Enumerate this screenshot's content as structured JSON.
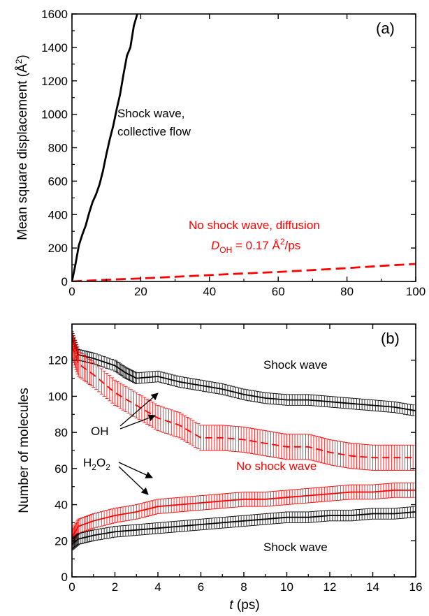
{
  "chart_data": [
    {
      "panel": "a",
      "type": "line",
      "panel_label": "(a)",
      "xlabel": "",
      "ylabel_main": "Mean square displacement (",
      "ylabel_unit": "Å",
      "ylabel_sup": "2",
      "ylabel_close": ")",
      "xlim": [
        0,
        100
      ],
      "ylim": [
        0,
        1600
      ],
      "xticks": [
        "0",
        "20",
        "40",
        "60",
        "80",
        "100"
      ],
      "yticks": [
        "0",
        "200",
        "400",
        "600",
        "800",
        "1000",
        "1200",
        "1400",
        "1600"
      ],
      "series": [
        {
          "name": "Shock wave, collective flow",
          "color": "#000000",
          "style": "solid",
          "points": [
            [
              0,
              0
            ],
            [
              1,
              100
            ],
            [
              2,
              215
            ],
            [
              3,
              280
            ],
            [
              4,
              335
            ],
            [
              5,
              410
            ],
            [
              6,
              475
            ],
            [
              7,
              520
            ],
            [
              8,
              580
            ],
            [
              9,
              660
            ],
            [
              10,
              760
            ],
            [
              11,
              850
            ],
            [
              12,
              930
            ],
            [
              13,
              1030
            ],
            [
              14,
              1120
            ],
            [
              15,
              1240
            ],
            [
              16,
              1350
            ],
            [
              17,
              1400
            ],
            [
              18,
              1530
            ],
            [
              19,
              1600
            ]
          ]
        },
        {
          "name": "No shock wave, diffusion",
          "color": "#ff0000",
          "style": "dashed",
          "points": [
            [
              0,
              0
            ],
            [
              10,
              10
            ],
            [
              20,
              18
            ],
            [
              30,
              28
            ],
            [
              40,
              38
            ],
            [
              50,
              48
            ],
            [
              60,
              57
            ],
            [
              70,
              68
            ],
            [
              80,
              80
            ],
            [
              90,
              93
            ],
            [
              100,
              105
            ]
          ]
        }
      ],
      "annotations": {
        "shock_line1": "Shock wave,",
        "shock_line2": "collective flow",
        "noshock_line1": "No shock wave, diffusion",
        "d_symbol": "D",
        "d_sub": "OH",
        "d_value": " = 0.17 ",
        "d_unit": "Å",
        "d_sup": "2",
        "d_rest": "/ps"
      }
    },
    {
      "panel": "b",
      "type": "line",
      "panel_label": "(b)",
      "xlabel_var": "t",
      "xlabel_unit": " (ps)",
      "ylabel": "Number of molecules",
      "xlim": [
        0,
        16
      ],
      "ylim": [
        0,
        140
      ],
      "xticks": [
        "0",
        "2",
        "4",
        "6",
        "8",
        "10",
        "12",
        "14",
        "16"
      ],
      "yticks": [
        "0",
        "20",
        "40",
        "60",
        "80",
        "100",
        "120"
      ],
      "series": [
        {
          "name": "OH, Shock wave",
          "color": "#000000",
          "style": "solid",
          "error": 3,
          "points": [
            [
              0,
              133
            ],
            [
              0.3,
              123
            ],
            [
              1,
              121
            ],
            [
              2,
              117
            ],
            [
              2.5,
              113
            ],
            [
              3,
              110
            ],
            [
              4,
              111
            ],
            [
              5,
              108
            ],
            [
              6,
              106
            ],
            [
              7,
              104
            ],
            [
              8,
              101
            ],
            [
              9,
              99
            ],
            [
              10,
              98
            ],
            [
              11,
              98
            ],
            [
              12,
              97
            ],
            [
              13,
              96
            ],
            [
              14,
              95
            ],
            [
              15,
              94
            ],
            [
              16,
              92
            ]
          ]
        },
        {
          "name": "OH, No shock wave",
          "color": "#ff0000",
          "style": "dashed",
          "error": 7,
          "points": [
            [
              0,
              128
            ],
            [
              0.3,
              118
            ],
            [
              1,
              112
            ],
            [
              2,
              102
            ],
            [
              3,
              95
            ],
            [
              4,
              88
            ],
            [
              5,
              84
            ],
            [
              6,
              77
            ],
            [
              7,
              77
            ],
            [
              8,
              76
            ],
            [
              9,
              74
            ],
            [
              10,
              72
            ],
            [
              11,
              72
            ],
            [
              12,
              69
            ],
            [
              13,
              67
            ],
            [
              14,
              66
            ],
            [
              15,
              66
            ],
            [
              16,
              66
            ]
          ]
        },
        {
          "name": "H2O2, No shock wave",
          "color": "#ff0000",
          "style": "solid",
          "error": 4,
          "points": [
            [
              0,
              22
            ],
            [
              0.3,
              28
            ],
            [
              1,
              31
            ],
            [
              2,
              34
            ],
            [
              3,
              36
            ],
            [
              4,
              39
            ],
            [
              5,
              40
            ],
            [
              6,
              41
            ],
            [
              7,
              42
            ],
            [
              8,
              43
            ],
            [
              9,
              43
            ],
            [
              10,
              44
            ],
            [
              11,
              45
            ],
            [
              12,
              46
            ],
            [
              13,
              47
            ],
            [
              14,
              47
            ],
            [
              15,
              48
            ],
            [
              16,
              48
            ]
          ]
        },
        {
          "name": "H2O2, Shock wave",
          "color": "#000000",
          "style": "solid",
          "error": 3,
          "points": [
            [
              0,
              18
            ],
            [
              0.3,
              21
            ],
            [
              1,
              23
            ],
            [
              2,
              25
            ],
            [
              3,
              26
            ],
            [
              4,
              27
            ],
            [
              5,
              28
            ],
            [
              6,
              29
            ],
            [
              7,
              30
            ],
            [
              8,
              31
            ],
            [
              9,
              32
            ],
            [
              10,
              33
            ],
            [
              11,
              33
            ],
            [
              12,
              34
            ],
            [
              13,
              34
            ],
            [
              14,
              35
            ],
            [
              15,
              35
            ],
            [
              16,
              36
            ]
          ]
        }
      ],
      "annotations": {
        "shock_upper": "Shock wave",
        "oh": "OH",
        "noshock": "No shock wave",
        "h2o2_H": "H",
        "h2o2_2a": "2",
        "h2o2_O": "O",
        "h2o2_2b": "2",
        "shock_lower": "Shock wave"
      }
    }
  ]
}
